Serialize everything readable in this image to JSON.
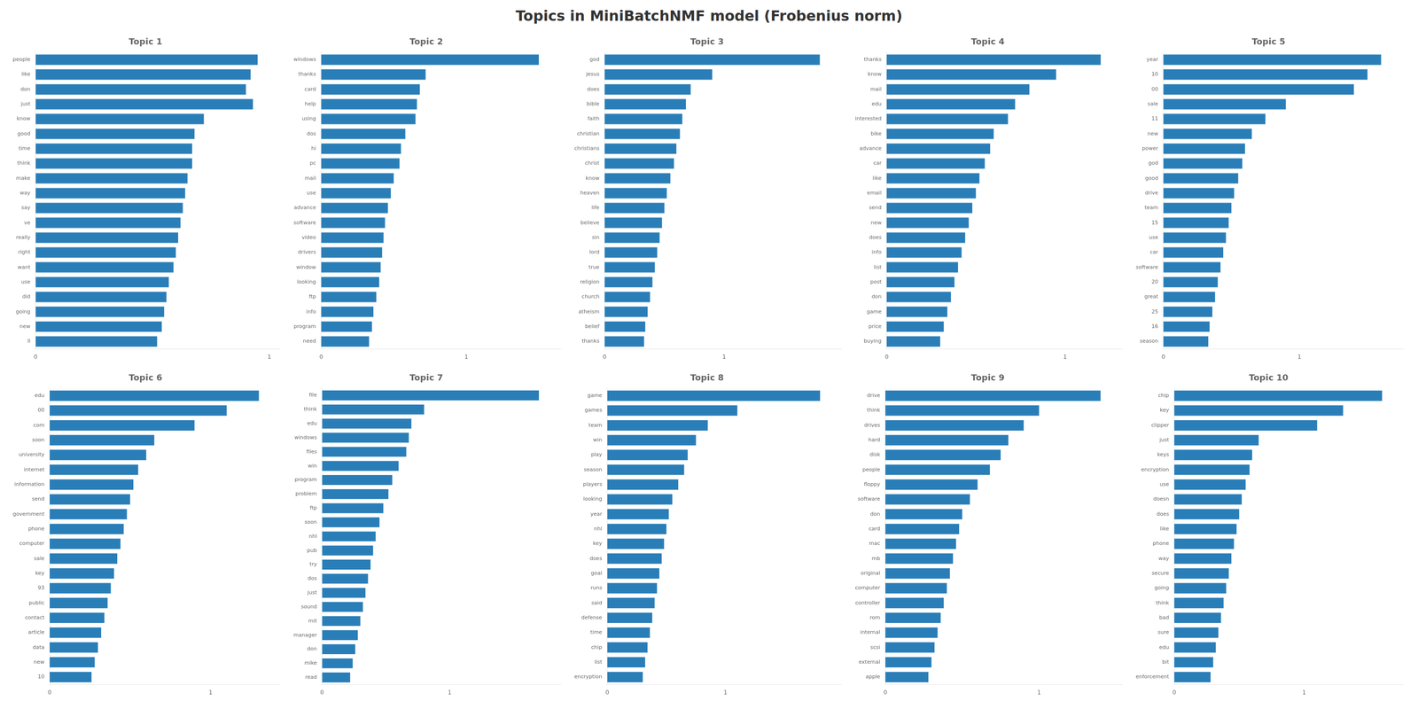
{
  "title": "Topics in MiniBatchNMF model (Frobenius norm)",
  "chart_data": [
    {
      "type": "bar",
      "orientation": "horizontal",
      "title": "Topic 1",
      "categories": [
        "people",
        "like",
        "don",
        "just",
        "know",
        "good",
        "time",
        "think",
        "make",
        "way",
        "say",
        "ve",
        "really",
        "right",
        "want",
        "use",
        "did",
        "going",
        "new",
        "ll"
      ],
      "values": [
        0.95,
        0.92,
        0.9,
        0.93,
        0.72,
        0.68,
        0.67,
        0.67,
        0.65,
        0.64,
        0.63,
        0.62,
        0.61,
        0.6,
        0.59,
        0.57,
        0.56,
        0.55,
        0.54,
        0.52
      ],
      "color": "#2a7eb8",
      "xlim": [
        0,
        1.045
      ],
      "xticks": [
        0,
        1
      ],
      "grid": false
    },
    {
      "type": "bar",
      "orientation": "horizontal",
      "title": "Topic 2",
      "categories": [
        "windows",
        "thanks",
        "card",
        "help",
        "using",
        "dos",
        "hi",
        "pc",
        "mail",
        "use",
        "advance",
        "software",
        "video",
        "drivers",
        "window",
        "looking",
        "ftp",
        "info",
        "program",
        "need"
      ],
      "values": [
        1.5,
        0.72,
        0.68,
        0.66,
        0.65,
        0.58,
        0.55,
        0.54,
        0.5,
        0.48,
        0.46,
        0.44,
        0.43,
        0.42,
        0.41,
        0.4,
        0.38,
        0.36,
        0.35,
        0.33
      ],
      "color": "#2a7eb8",
      "xlim": [
        0,
        1.65
      ],
      "xticks": [
        0,
        1
      ],
      "grid": false
    },
    {
      "type": "bar",
      "orientation": "horizontal",
      "title": "Topic 3",
      "categories": [
        "god",
        "jesus",
        "does",
        "bible",
        "faith",
        "christian",
        "christians",
        "christ",
        "know",
        "heaven",
        "life",
        "believe",
        "sin",
        "lord",
        "true",
        "religion",
        "church",
        "atheism",
        "belief",
        "thanks"
      ],
      "values": [
        1.8,
        0.9,
        0.72,
        0.68,
        0.65,
        0.63,
        0.6,
        0.58,
        0.55,
        0.52,
        0.5,
        0.48,
        0.46,
        0.44,
        0.42,
        0.4,
        0.38,
        0.36,
        0.34,
        0.33
      ],
      "color": "#2a7eb8",
      "xlim": [
        0,
        1.98
      ],
      "xticks": [
        0,
        1
      ],
      "grid": false
    },
    {
      "type": "bar",
      "orientation": "horizontal",
      "title": "Topic 4",
      "categories": [
        "thanks",
        "know",
        "mail",
        "edu",
        "interested",
        "bike",
        "advance",
        "car",
        "like",
        "email",
        "send",
        "new",
        "does",
        "info",
        "list",
        "post",
        "don",
        "game",
        "price",
        "buying"
      ],
      "values": [
        1.2,
        0.95,
        0.8,
        0.72,
        0.68,
        0.6,
        0.58,
        0.55,
        0.52,
        0.5,
        0.48,
        0.46,
        0.44,
        0.42,
        0.4,
        0.38,
        0.36,
        0.34,
        0.32,
        0.3
      ],
      "color": "#2a7eb8",
      "xlim": [
        0,
        1.32
      ],
      "xticks": [
        0,
        1
      ],
      "grid": false
    },
    {
      "type": "bar",
      "orientation": "horizontal",
      "title": "Topic 5",
      "categories": [
        "year",
        "10",
        "00",
        "sale",
        "11",
        "new",
        "power",
        "god",
        "good",
        "drive",
        "team",
        "15",
        "use",
        "car",
        "software",
        "20",
        "great",
        "25",
        "16",
        "season"
      ],
      "values": [
        1.6,
        1.5,
        1.4,
        0.9,
        0.75,
        0.65,
        0.6,
        0.58,
        0.55,
        0.52,
        0.5,
        0.48,
        0.46,
        0.44,
        0.42,
        0.4,
        0.38,
        0.36,
        0.34,
        0.33
      ],
      "color": "#2a7eb8",
      "xlim": [
        0,
        1.76
      ],
      "xticks": [
        0,
        1
      ],
      "grid": false
    },
    {
      "type": "bar",
      "orientation": "horizontal",
      "title": "Topic 6",
      "categories": [
        "edu",
        "00",
        "com",
        "soon",
        "university",
        "internet",
        "information",
        "send",
        "government",
        "phone",
        "computer",
        "sale",
        "key",
        "93",
        "public",
        "contact",
        "article",
        "data",
        "new",
        "10"
      ],
      "values": [
        1.3,
        1.1,
        0.9,
        0.65,
        0.6,
        0.55,
        0.52,
        0.5,
        0.48,
        0.46,
        0.44,
        0.42,
        0.4,
        0.38,
        0.36,
        0.34,
        0.32,
        0.3,
        0.28,
        0.26
      ],
      "color": "#2a7eb8",
      "xlim": [
        0,
        1.43
      ],
      "xticks": [
        0,
        1
      ],
      "grid": false
    },
    {
      "type": "bar",
      "orientation": "horizontal",
      "title": "Topic 7",
      "categories": [
        "file",
        "think",
        "edu",
        "windows",
        "files",
        "win",
        "program",
        "problem",
        "ftp",
        "soon",
        "nhl",
        "pub",
        "try",
        "dos",
        "just",
        "sound",
        "mit",
        "manager",
        "don",
        "mike",
        "read"
      ],
      "values": [
        1.7,
        0.8,
        0.7,
        0.68,
        0.66,
        0.6,
        0.55,
        0.52,
        0.48,
        0.45,
        0.42,
        0.4,
        0.38,
        0.36,
        0.34,
        0.32,
        0.3,
        0.28,
        0.26,
        0.24,
        0.22
      ],
      "color": "#2a7eb8",
      "xlim": [
        0,
        1.87
      ],
      "xticks": [
        0,
        1
      ],
      "grid": false
    },
    {
      "type": "bar",
      "orientation": "horizontal",
      "title": "Topic 8",
      "categories": [
        "game",
        "games",
        "team",
        "win",
        "play",
        "season",
        "players",
        "looking",
        "year",
        "nhl",
        "key",
        "does",
        "goal",
        "runs",
        "said",
        "defense",
        "time",
        "chip",
        "list",
        "encryption"
      ],
      "values": [
        1.8,
        1.1,
        0.85,
        0.75,
        0.68,
        0.65,
        0.6,
        0.55,
        0.52,
        0.5,
        0.48,
        0.46,
        0.44,
        0.42,
        0.4,
        0.38,
        0.36,
        0.34,
        0.32,
        0.3
      ],
      "color": "#2a7eb8",
      "xlim": [
        0,
        1.98
      ],
      "xticks": [
        0,
        1
      ],
      "grid": false
    },
    {
      "type": "bar",
      "orientation": "horizontal",
      "title": "Topic 9",
      "categories": [
        "drive",
        "think",
        "drives",
        "hard",
        "disk",
        "people",
        "floppy",
        "software",
        "don",
        "card",
        "mac",
        "mb",
        "original",
        "computer",
        "controller",
        "rom",
        "internal",
        "scsi",
        "external",
        "apple"
      ],
      "values": [
        1.4,
        1.0,
        0.9,
        0.8,
        0.75,
        0.68,
        0.6,
        0.55,
        0.5,
        0.48,
        0.46,
        0.44,
        0.42,
        0.4,
        0.38,
        0.36,
        0.34,
        0.32,
        0.3,
        0.28
      ],
      "color": "#2a7eb8",
      "xlim": [
        0,
        1.54
      ],
      "xticks": [
        0,
        1
      ],
      "grid": false
    },
    {
      "type": "bar",
      "orientation": "horizontal",
      "title": "Topic 10",
      "categories": [
        "chip",
        "key",
        "clipper",
        "just",
        "keys",
        "encryption",
        "use",
        "doesn",
        "does",
        "like",
        "phone",
        "way",
        "secure",
        "going",
        "think",
        "bad",
        "sure",
        "edu",
        "bit",
        "enforcement"
      ],
      "values": [
        1.6,
        1.3,
        1.1,
        0.65,
        0.6,
        0.58,
        0.55,
        0.52,
        0.5,
        0.48,
        0.46,
        0.44,
        0.42,
        0.4,
        0.38,
        0.36,
        0.34,
        0.32,
        0.3,
        0.28
      ],
      "color": "#2a7eb8",
      "xlim": [
        0,
        1.76
      ],
      "xticks": [
        0,
        1
      ],
      "grid": false
    }
  ]
}
